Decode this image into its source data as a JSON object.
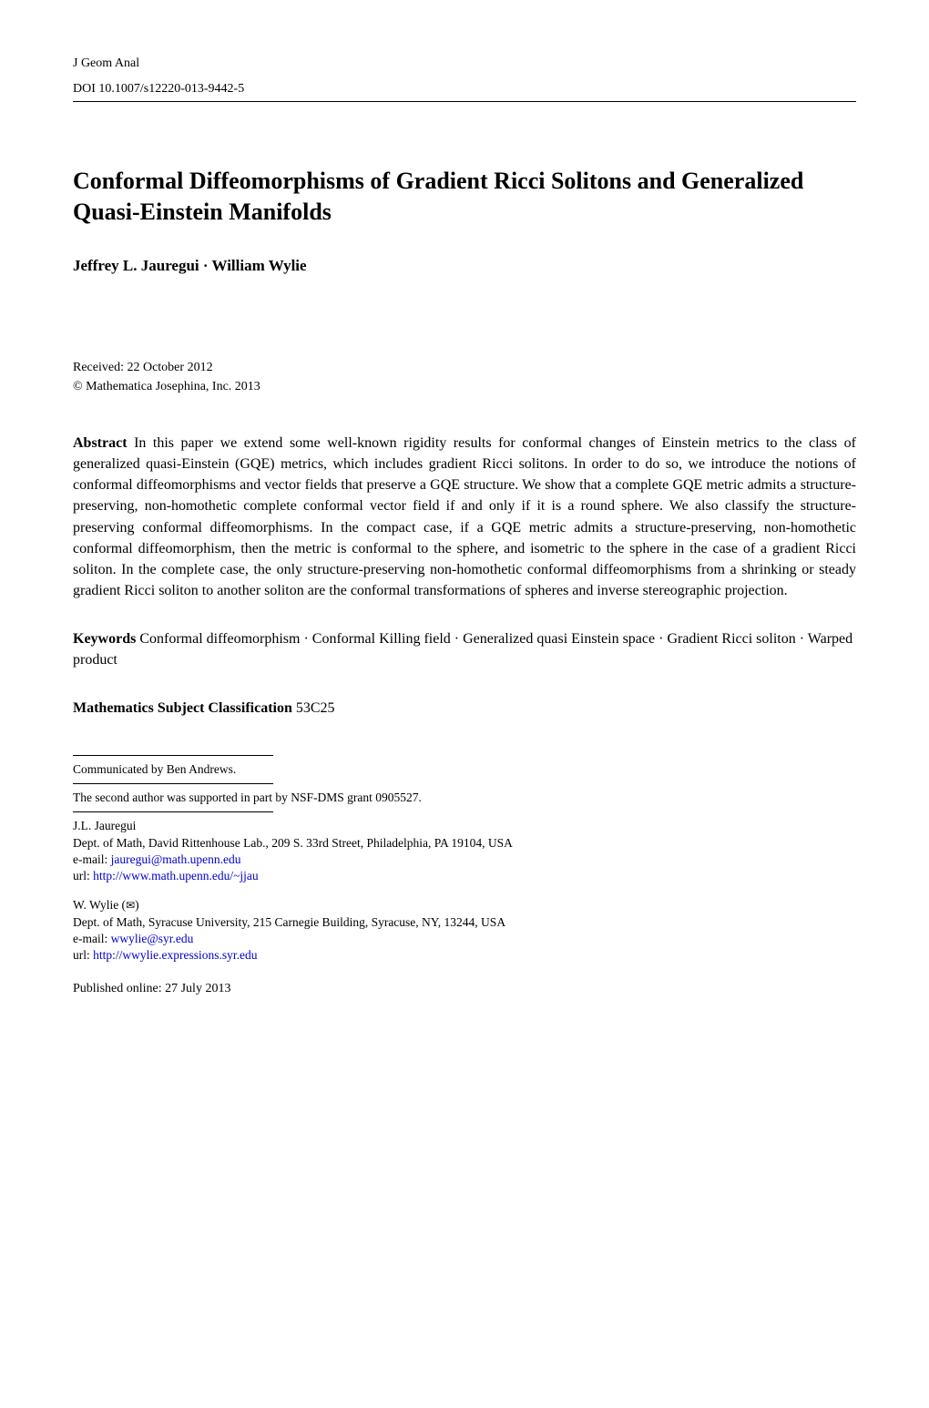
{
  "header": {
    "journal": "J Geom Anal",
    "doi": "DOI 10.1007/s12220-013-9442-5"
  },
  "title": "Conformal Diffeomorphisms of Gradient Ricci Solitons and Generalized Quasi-Einstein Manifolds",
  "authors": "Jeffrey L. Jauregui · William Wylie",
  "received": "Received: 22 October 2012",
  "copyright": "© Mathematica Josephina, Inc. 2013",
  "abstract": {
    "label": "Abstract",
    "text": " In this paper we extend some well-known rigidity results for conformal changes of Einstein metrics to the class of generalized quasi-Einstein (GQE) metrics, which includes gradient Ricci solitons. In order to do so, we introduce the notions of conformal diffeomorphisms and vector fields that preserve a GQE structure. We show that a complete GQE metric admits a structure-preserving, non-homothetic complete conformal vector field if and only if it is a round sphere. We also classify the structure-preserving conformal diffeomorphisms. In the compact case, if a GQE metric admits a structure-preserving, non-homothetic conformal diffeomorphism, then the metric is conformal to the sphere, and isometric to the sphere in the case of a gradient Ricci soliton. In the complete case, the only structure-preserving non-homothetic conformal diffeomorphisms from a shrinking or steady gradient Ricci soliton to another soliton are the conformal transformations of spheres and inverse stereographic projection."
  },
  "keywords": {
    "label": "Keywords",
    "text": " Conformal diffeomorphism · Conformal Killing field · Generalized quasi Einstein space · Gradient Ricci soliton · Warped product"
  },
  "msc": {
    "label": "Mathematics Subject Classification",
    "text": " 53C25"
  },
  "footnotes": {
    "communicated": "Communicated by Ben Andrews.",
    "support": "The second author was supported in part by NSF-DMS grant 0905527.",
    "author1": {
      "name": "J.L. Jauregui",
      "affiliation": "Dept. of Math, David Rittenhouse Lab., 209 S. 33rd Street, Philadelphia, PA 19104, USA",
      "email_label": "e-mail: ",
      "email": "jauregui@math.upenn.edu",
      "url_label": "url: ",
      "url": "http://www.math.upenn.edu/~jjau"
    },
    "author2": {
      "name_prefix": "W. Wylie (",
      "name_suffix": ")",
      "envelope": "✉",
      "affiliation": "Dept. of Math, Syracuse University, 215 Carnegie Building, Syracuse, NY, 13244, USA",
      "email_label": "e-mail: ",
      "email": "wwylie@syr.edu",
      "url_label": "url: ",
      "url": "http://wwylie.expressions.syr.edu"
    }
  },
  "published": "Published online: 27 July 2013"
}
